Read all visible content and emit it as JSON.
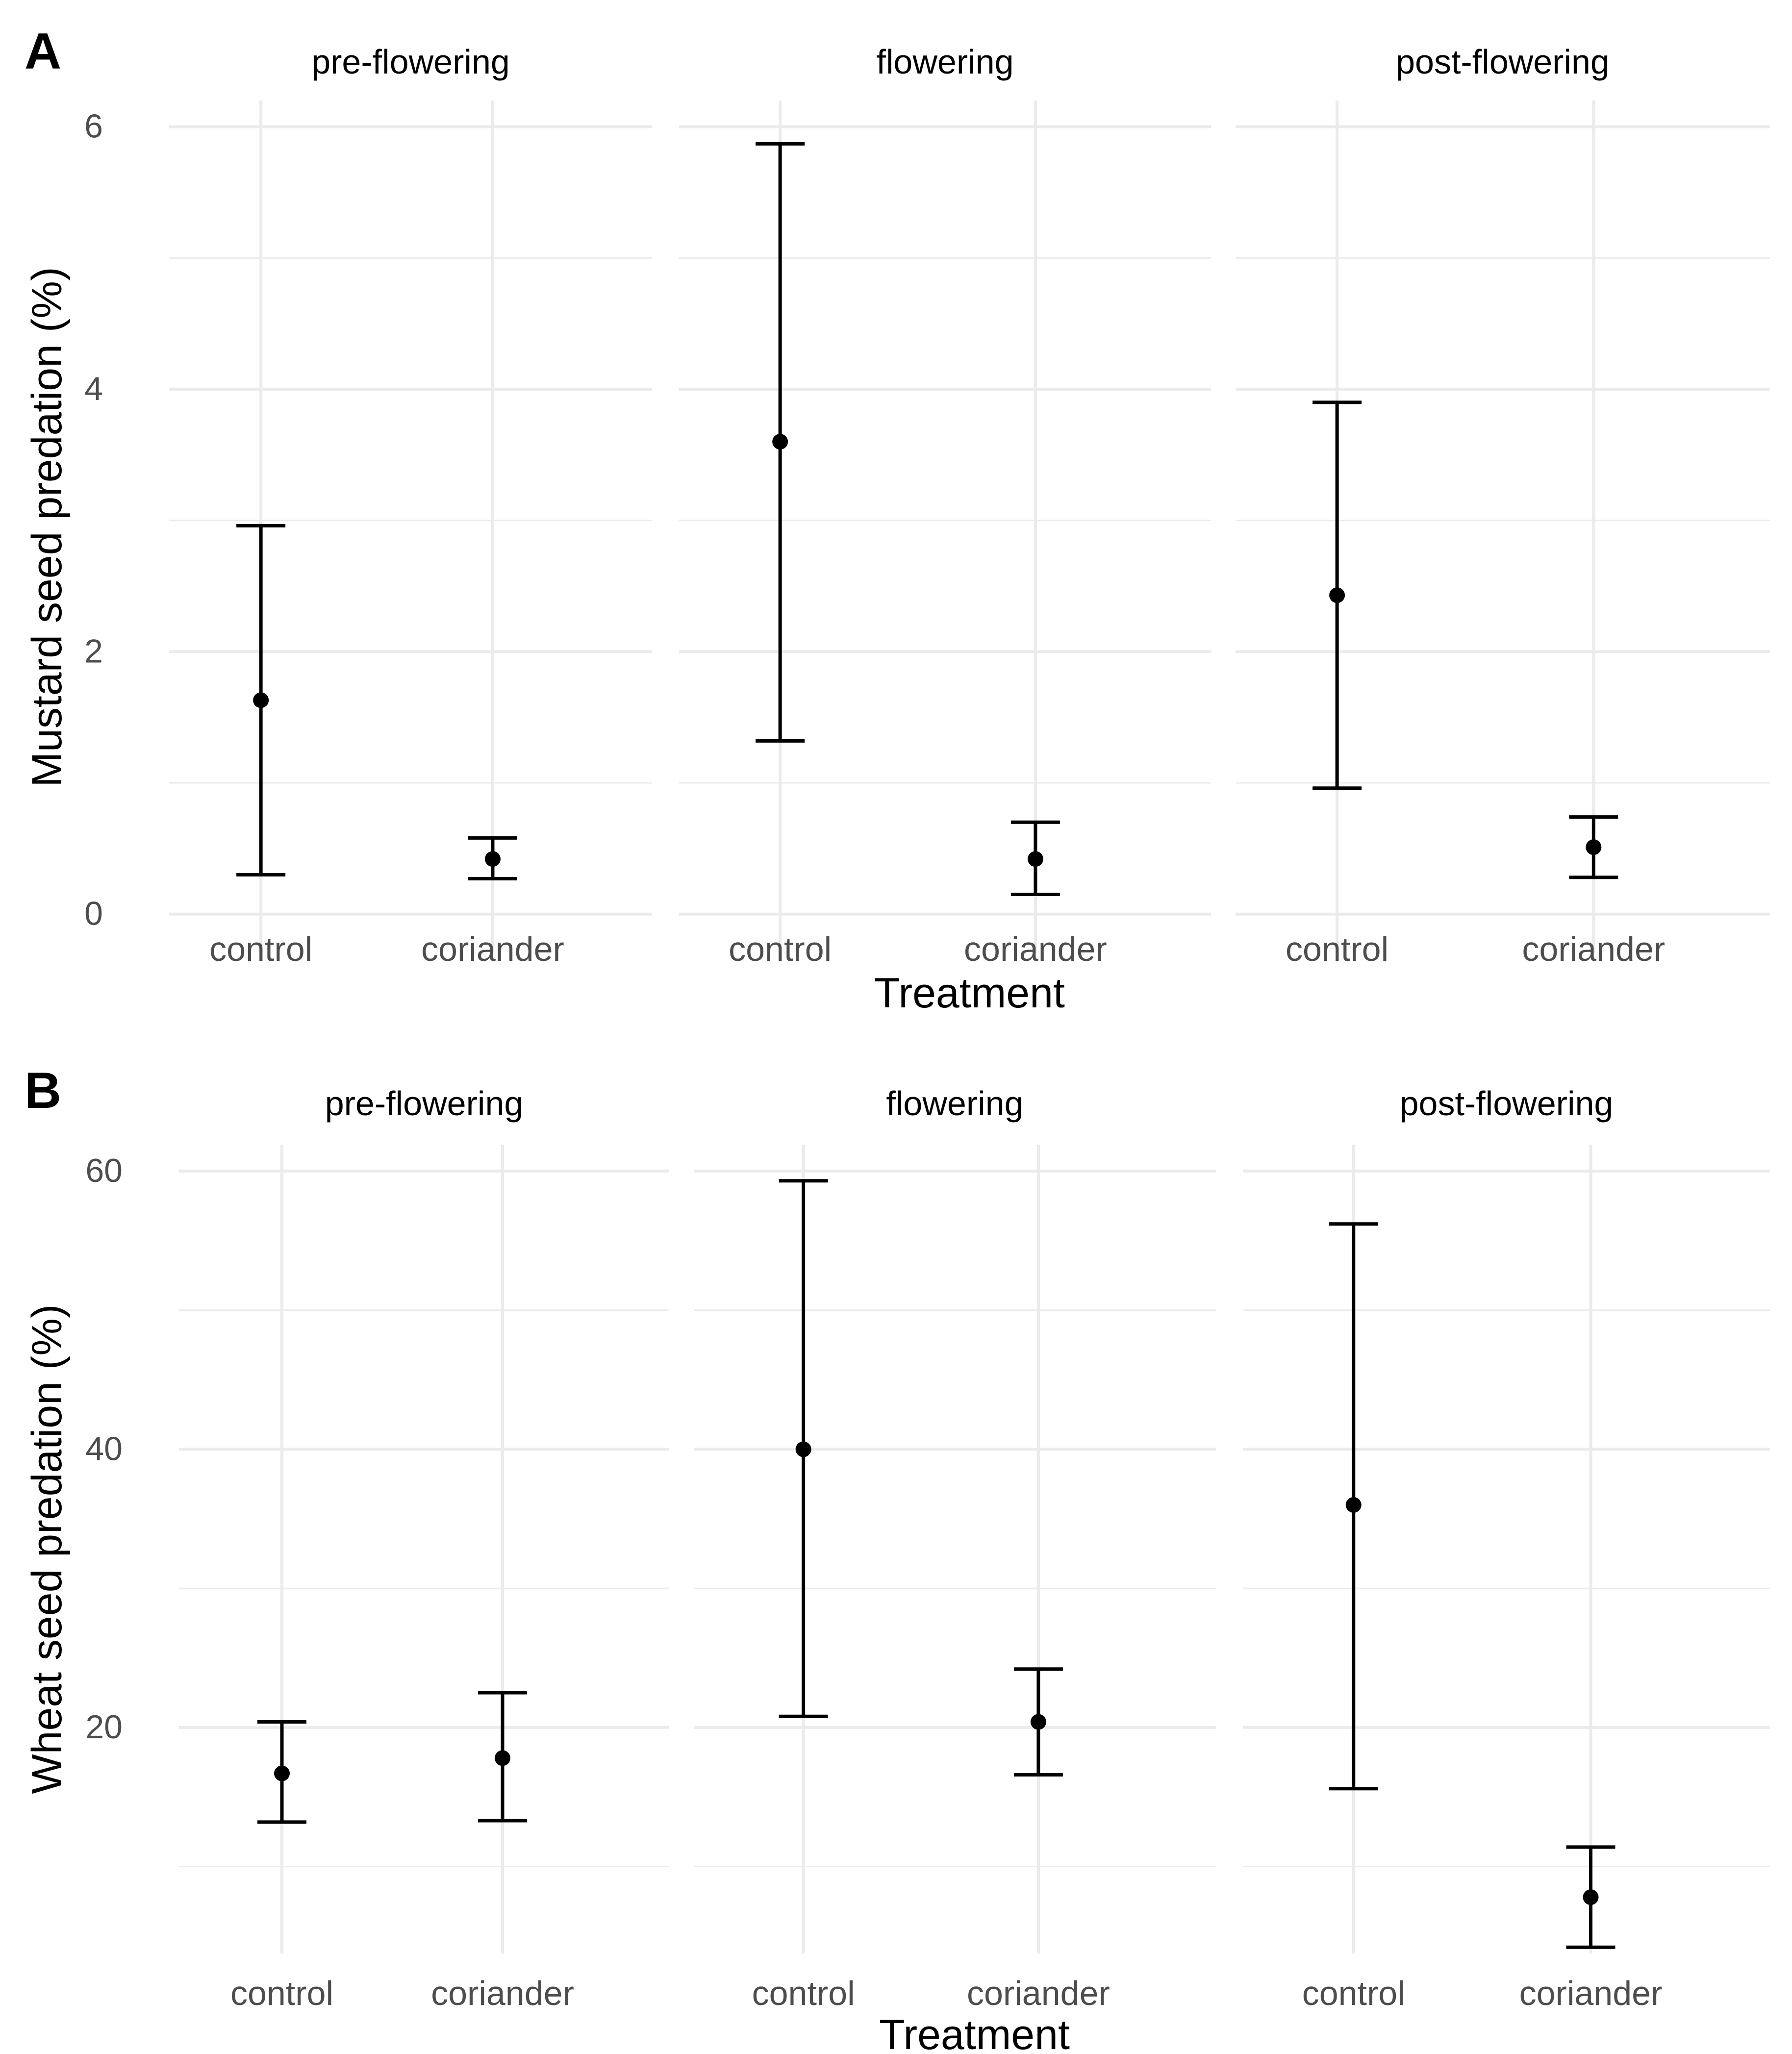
{
  "colors": {
    "background": "#ffffff",
    "grid": "#ebebeb",
    "ink": "#000000",
    "tick_text": "#4d4d4d"
  },
  "chart_data": [
    {
      "type": "errorbar",
      "panel_label": "A",
      "ylabel": "Mustard seed predation (%)",
      "xlabel": "Treatment",
      "ylim": [
        -0.3,
        6.2
      ],
      "y_ticks": [
        0,
        2,
        4,
        6
      ],
      "y_tick_labels": [
        "0",
        "2",
        "4",
        "6"
      ],
      "y_minor_ticks": [
        1,
        3,
        5
      ],
      "categories": [
        "control",
        "coriander"
      ],
      "facets": [
        {
          "title": "pre-flowering",
          "points": [
            {
              "category": "control",
              "mean": 1.63,
              "lower": 0.3,
              "upper": 2.96
            },
            {
              "category": "coriander",
              "mean": 0.42,
              "lower": 0.27,
              "upper": 0.58
            }
          ]
        },
        {
          "title": "flowering",
          "points": [
            {
              "category": "control",
              "mean": 3.6,
              "lower": 1.32,
              "upper": 5.87
            },
            {
              "category": "coriander",
              "mean": 0.42,
              "lower": 0.15,
              "upper": 0.7
            }
          ]
        },
        {
          "title": "post-flowering",
          "points": [
            {
              "category": "control",
              "mean": 2.43,
              "lower": 0.96,
              "upper": 3.9
            },
            {
              "category": "coriander",
              "mean": 0.51,
              "lower": 0.28,
              "upper": 0.74
            }
          ]
        }
      ]
    },
    {
      "type": "errorbar",
      "panel_label": "B",
      "ylabel": "Wheat seed predation (%)",
      "xlabel": "Treatment",
      "ylim": [
        3.75,
        61.9
      ],
      "y_ticks": [
        20,
        40,
        60
      ],
      "y_tick_labels": [
        "20",
        "40",
        "60"
      ],
      "y_minor_ticks": [
        10,
        30,
        50
      ],
      "categories": [
        "control",
        "coriander"
      ],
      "facets": [
        {
          "title": "pre-flowering",
          "points": [
            {
              "category": "control",
              "mean": 16.7,
              "lower": 13.2,
              "upper": 20.4
            },
            {
              "category": "coriander",
              "mean": 17.8,
              "lower": 13.3,
              "upper": 22.5
            }
          ]
        },
        {
          "title": "flowering",
          "points": [
            {
              "category": "control",
              "mean": 40.0,
              "lower": 20.8,
              "upper": 59.3
            },
            {
              "category": "coriander",
              "mean": 20.4,
              "lower": 16.6,
              "upper": 24.2
            }
          ]
        },
        {
          "title": "post-flowering",
          "points": [
            {
              "category": "control",
              "mean": 36.0,
              "lower": 15.6,
              "upper": 56.2
            },
            {
              "category": "coriander",
              "mean": 7.8,
              "lower": 4.2,
              "upper": 11.4
            }
          ]
        }
      ]
    }
  ]
}
